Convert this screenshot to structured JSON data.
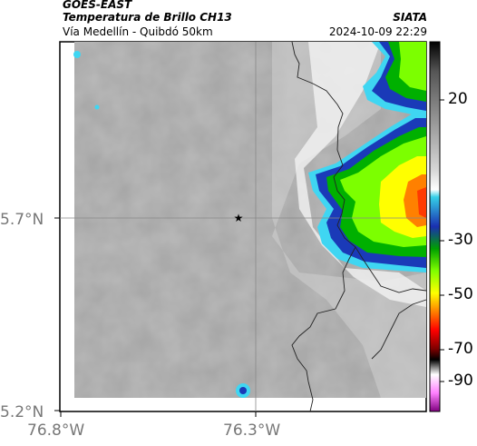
{
  "header": {
    "satellite": "GOES-EAST",
    "product": "Temperatura de Brillo CH13",
    "region": "Vía Medellín - Quibdó 50km",
    "brand": "SIATA",
    "timestamp": "2024-10-09 22:29"
  },
  "axes": {
    "lat_labels": [
      "5.7°N",
      "5.2°N"
    ],
    "lon_labels": [
      "76.8°W",
      "76.3°W"
    ]
  },
  "colorbar": {
    "tick_labels": [
      "20",
      "-30",
      "-50",
      "-70",
      "-90"
    ],
    "colors": [
      "#000000",
      "#4a4a4a",
      "#b0b0b0",
      "#ffffff",
      "#35d0e8",
      "#1a2fb0",
      "#00a000",
      "#80ff00",
      "#ffff00",
      "#ff8000",
      "#ff0000",
      "#800000",
      "#000000",
      "#ffffff",
      "#ff80ff",
      "#800080"
    ]
  },
  "map": {
    "marker_icon": "star-icon",
    "cloud_palette": [
      "#9a9a9a",
      "#b5b5b5",
      "#ffffff",
      "#3fd6f2",
      "#1a3ab8",
      "#00b000",
      "#7cff00",
      "#ffff00",
      "#ff5a00"
    ]
  }
}
